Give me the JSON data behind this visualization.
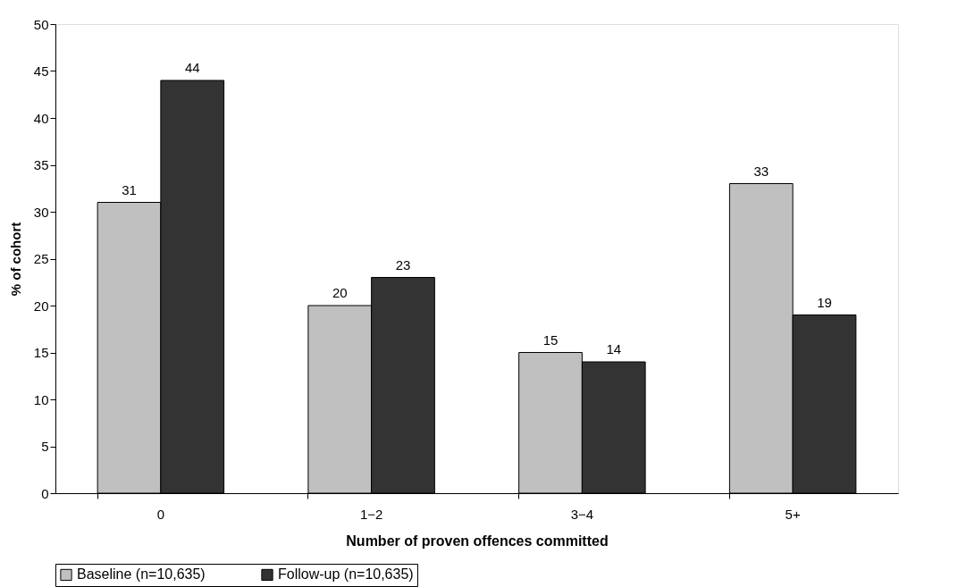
{
  "chart_data": {
    "type": "bar",
    "xlabel": "Number of proven offences committed",
    "ylabel": "% of cohort",
    "categories": [
      "0",
      "1−2",
      "3−4",
      "5+"
    ],
    "series": [
      {
        "name": "Baseline (n=10,635)",
        "color": "#c0c0c0",
        "values": [
          31,
          20,
          15,
          33
        ]
      },
      {
        "name": "Follow-up (n=10,635)",
        "color": "#333333",
        "values": [
          44,
          23,
          14,
          19
        ]
      }
    ],
    "ylim": [
      0,
      50
    ],
    "yticks": [
      0,
      5,
      10,
      15,
      20,
      25,
      30,
      35,
      40,
      45,
      50
    ],
    "data_labels": true,
    "grid": false,
    "legend": "bottom"
  }
}
